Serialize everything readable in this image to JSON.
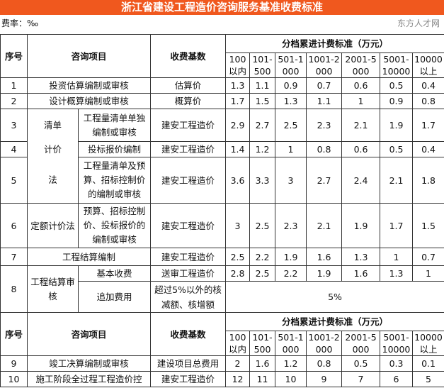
{
  "title": "浙江省建设工程造价咨询服务基准收费标准",
  "rate_label": "费率：‰",
  "header": {
    "no": "序号",
    "item": "咨询项目",
    "base": "收费基数",
    "tier_title": "分档累进计费标准（万元）",
    "tiers": [
      "100以内",
      "101-500",
      "501-1000",
      "1001-2000",
      "2001-5000",
      "5001-10000",
      "10000以上"
    ]
  },
  "rows": [
    {
      "no": "1",
      "item": "投资估算编制或审核",
      "base": "估算价",
      "values": [
        "1.3",
        "1.1",
        "0.9",
        "0.7",
        "0.6",
        "0.5",
        "0.4"
      ]
    },
    {
      "no": "2",
      "item": "设计概算编制或审核",
      "base": "概算价",
      "values": [
        "1.7",
        "1.5",
        "1.3",
        "1.1",
        "1",
        "0.9",
        "0.8"
      ]
    },
    {
      "no": "3",
      "group": "清单",
      "item": "工程量清单单独编制或审核",
      "base": "建安工程造价",
      "values": [
        "2.9",
        "2.7",
        "2.5",
        "2.3",
        "2.1",
        "1.9",
        "1.7"
      ]
    },
    {
      "no": "4",
      "group": "计价",
      "item": "投标报价编制",
      "base": "建安工程造价",
      "values": [
        "1.4",
        "1.2",
        "1",
        "0.8",
        "0.6",
        "0.5",
        "0.4"
      ]
    },
    {
      "no": "5",
      "group": "法",
      "item": "工程量清单及预算、招标控制价的编制或审核",
      "base": "建安工程造价",
      "values": [
        "3.6",
        "3.3",
        "3",
        "2.7",
        "2.4",
        "2.1",
        "1.8"
      ]
    },
    {
      "no": "6",
      "group": "定额计价法",
      "item": "预算、招标控制价、投标报价的编制或审核",
      "base": "建安工程造价",
      "values": [
        "3",
        "2.5",
        "2.3",
        "2.1",
        "1.9",
        "1.7",
        "1.5"
      ]
    },
    {
      "no": "7",
      "item": "工程结算编制",
      "base": "建安工程造价",
      "values": [
        "2.5",
        "2.2",
        "1.9",
        "1.6",
        "1.3",
        "1",
        "0.7"
      ]
    },
    {
      "no": "8",
      "group": "工程结算审核",
      "item": "基本收费",
      "base": "送审工程造价",
      "values": [
        "2.8",
        "2.5",
        "2.2",
        "1.9",
        "1.6",
        "1.3",
        "1"
      ]
    },
    {
      "item": "追加费用",
      "base": "超过5%以外的核减额、核增额",
      "merged_value": "5%"
    }
  ],
  "rows2": [
    {
      "no": "9",
      "item": "竣工决算编制或审核",
      "base": "建设项目总费用",
      "values": [
        "2",
        "1.6",
        "1.2",
        "0.8",
        "0.5",
        "0.3",
        "0.1"
      ]
    },
    {
      "no": "10",
      "item": "施工阶段全过程工程造价控",
      "base": "建安工程造价",
      "values": [
        "12",
        "11",
        "10",
        "9",
        "7",
        "6",
        "5"
      ]
    }
  ],
  "watermark": "东方人才网",
  "colors": {
    "title_bg": "#f0581e",
    "title_text": "#ffffff"
  }
}
